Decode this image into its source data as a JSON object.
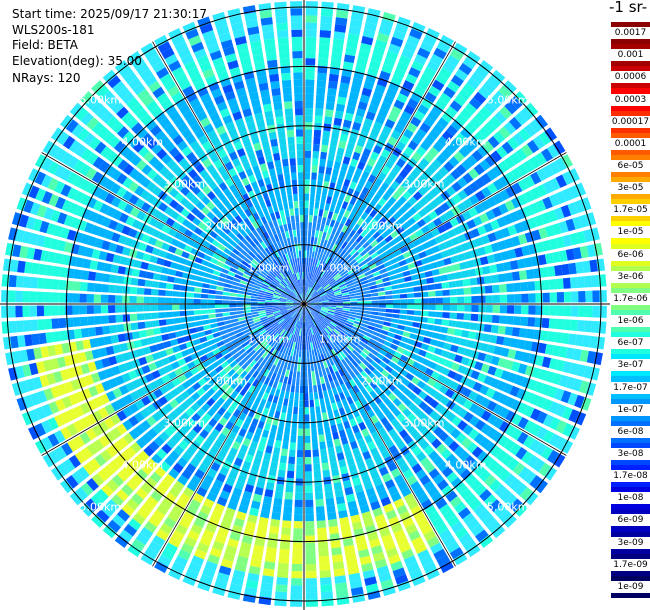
{
  "info": {
    "start_time": "Start time: 2025/09/17 21:30:17",
    "instrument": "WLS200s-181",
    "field": "Field: BETA",
    "elevation": "Elevation(deg): 35.00",
    "nrays": "NRays: 120"
  },
  "colorbar": {
    "unit_label": "-1 sr-",
    "labels": [
      "0.0017",
      "0.001",
      "0.0006",
      "0.0003",
      "0.00017",
      "0.0001",
      "6e-05",
      "3e-05",
      "1.7e-05",
      "1e-05",
      "6e-06",
      "3e-06",
      "1.7e-06",
      "1e-06",
      "6e-07",
      "3e-07",
      "1.7e-07",
      "1e-07",
      "6e-08",
      "3e-08",
      "1.7e-08",
      "1e-08",
      "6e-09",
      "3e-09",
      "1.7e-09",
      "1e-09"
    ],
    "colors": [
      "#8b0000",
      "#a30000",
      "#c80000",
      "#ff0000",
      "#ff3000",
      "#ff5a00",
      "#ff8000",
      "#ffaa00",
      "#ffd000",
      "#ffff00",
      "#e0ff20",
      "#b0ff50",
      "#80ff80",
      "#50ffb0",
      "#20ffe0",
      "#00e8ff",
      "#00c0ff",
      "#0098ff",
      "#0070ff",
      "#0048ff",
      "#0020ff",
      "#0000e0",
      "#0000c0",
      "#0000a0",
      "#000080",
      "#000060"
    ]
  },
  "chart_data": {
    "type": "heatmap",
    "projection": "polar-ppi",
    "nrays": 120,
    "elevation_deg": 35.0,
    "range_rings_km": [
      1,
      2,
      3,
      4,
      5
    ],
    "ring_labels": [
      "1.00km",
      "2.00km",
      "3.00km",
      "4.00km",
      "5.00km"
    ],
    "max_range_km": 5.1,
    "radial_bands": [
      {
        "r0_km": 0.0,
        "r1_km": 0.7,
        "base": "#1e6cff"
      },
      {
        "r0_km": 0.7,
        "r1_km": 1.5,
        "base": "#1a8cff"
      },
      {
        "r0_km": 1.5,
        "r1_km": 2.4,
        "base": "#00b8ff"
      },
      {
        "r0_km": 2.4,
        "r1_km": 3.2,
        "base": "#10d4f0"
      },
      {
        "r0_km": 3.2,
        "r1_km": 4.0,
        "base": "#00b4ff"
      },
      {
        "r0_km": 4.0,
        "r1_km": 4.5,
        "base": "#20ffe0"
      },
      {
        "r0_km": 4.5,
        "r1_km": 5.1,
        "base": "#30eaff"
      }
    ],
    "highlight_zone": {
      "azimuth_from_deg": 150,
      "azimuth_to_deg": 260,
      "r0_km": 3.6,
      "r1_km": 4.6,
      "color": "#e8ff30"
    },
    "spoke_angles_deg": [
      0,
      30,
      60,
      90,
      120,
      150,
      180,
      210,
      240,
      270,
      300,
      330
    ]
  }
}
